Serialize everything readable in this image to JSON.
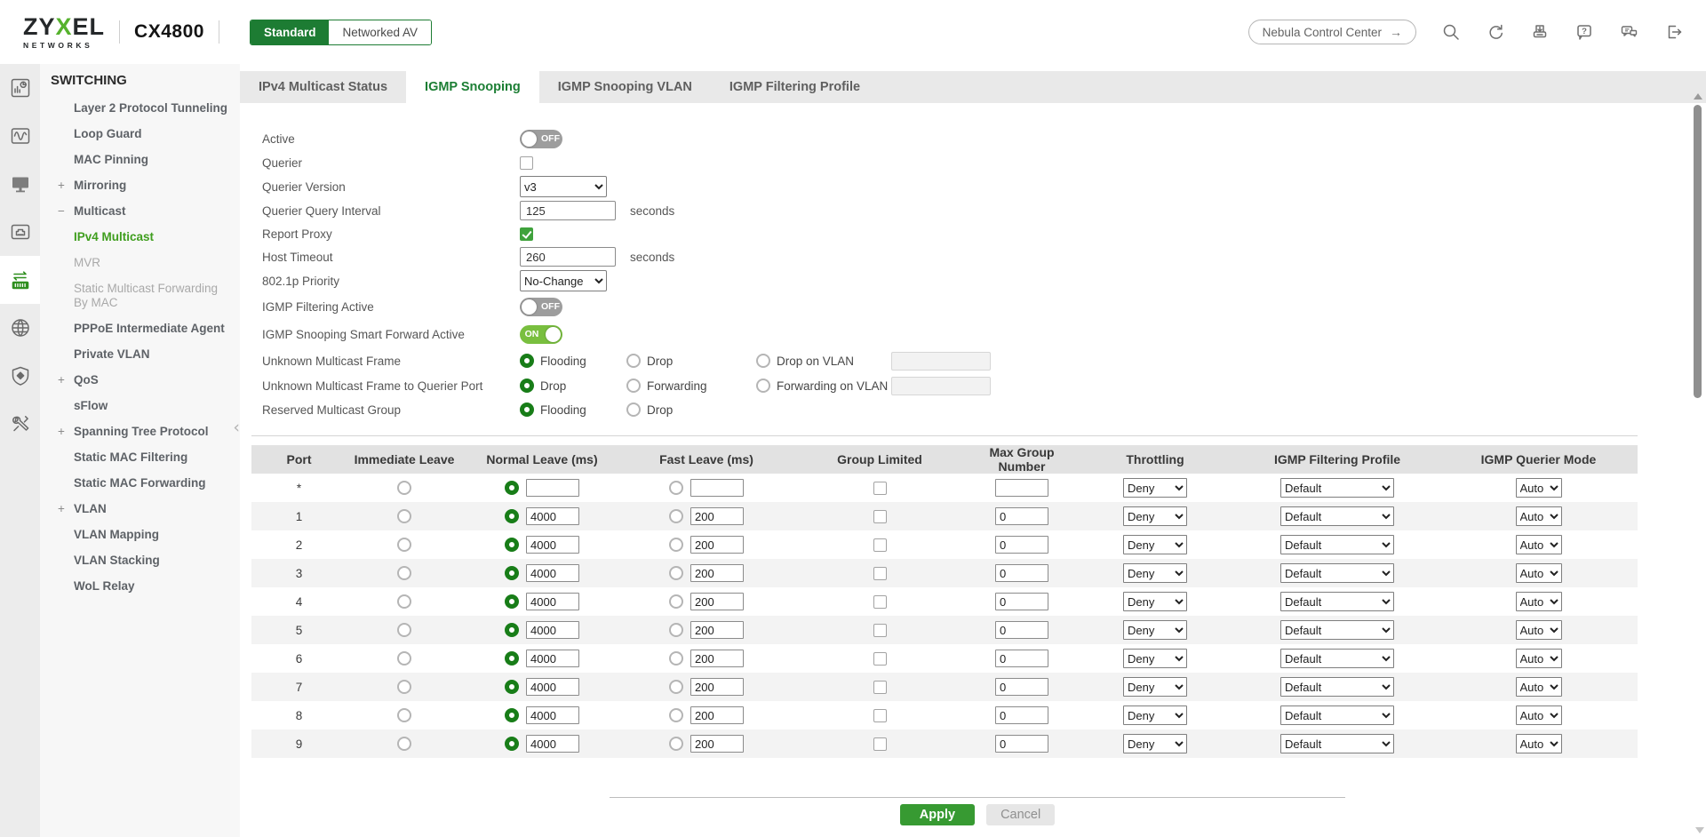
{
  "header": {
    "logo": {
      "part1": "ZY",
      "part2": "X",
      "part3": "EL",
      "subtitle": "NETWORKS"
    },
    "model": "CX4800",
    "mode_toggle": {
      "options": [
        {
          "label": "Standard",
          "active": true
        },
        {
          "label": "Networked AV",
          "active": false
        }
      ]
    },
    "nebula_button": {
      "label": "Nebula Control Center",
      "arrow": "→"
    },
    "icons": [
      "search",
      "refresh",
      "save",
      "help",
      "feedback",
      "logout"
    ]
  },
  "sidebar": {
    "rail_icons": [
      "dashboard",
      "monitoring-waves",
      "display",
      "port-status",
      "switching",
      "networking-globe",
      "security-shield",
      "maintenance-tools"
    ],
    "active_rail_icon": "switching",
    "section": "SWITCHING",
    "collapse_icon": "‹",
    "items": [
      {
        "label": "Layer 2 Protocol Tunneling",
        "state": "normal",
        "prefix": ""
      },
      {
        "label": "Loop Guard",
        "state": "normal",
        "prefix": ""
      },
      {
        "label": "MAC Pinning",
        "state": "normal",
        "prefix": ""
      },
      {
        "label": "Mirroring",
        "state": "normal",
        "prefix": "+"
      },
      {
        "label": "Multicast",
        "state": "normal",
        "prefix": "−"
      },
      {
        "label": "IPv4 Multicast",
        "state": "active",
        "prefix": ""
      },
      {
        "label": "MVR",
        "state": "dim",
        "prefix": ""
      },
      {
        "label": "Static Multicast Forwarding By MAC",
        "state": "dim",
        "prefix": ""
      },
      {
        "label": "PPPoE Intermediate Agent",
        "state": "normal",
        "prefix": ""
      },
      {
        "label": "Private VLAN",
        "state": "normal",
        "prefix": ""
      },
      {
        "label": "QoS",
        "state": "normal",
        "prefix": "+"
      },
      {
        "label": "sFlow",
        "state": "normal",
        "prefix": ""
      },
      {
        "label": "Spanning Tree Protocol",
        "state": "normal",
        "prefix": "+"
      },
      {
        "label": "Static MAC Filtering",
        "state": "normal",
        "prefix": ""
      },
      {
        "label": "Static MAC Forwarding",
        "state": "normal",
        "prefix": ""
      },
      {
        "label": "VLAN",
        "state": "normal",
        "prefix": "+"
      },
      {
        "label": "VLAN Mapping",
        "state": "normal",
        "prefix": ""
      },
      {
        "label": "VLAN Stacking",
        "state": "normal",
        "prefix": ""
      },
      {
        "label": "WoL Relay",
        "state": "normal",
        "prefix": ""
      }
    ]
  },
  "tabs": [
    {
      "label": "IPv4 Multicast Status",
      "active": false
    },
    {
      "label": "IGMP Snooping",
      "active": true
    },
    {
      "label": "IGMP Snooping VLAN",
      "active": false
    },
    {
      "label": "IGMP Filtering Profile",
      "active": false
    }
  ],
  "form": {
    "active": {
      "label": "Active",
      "value": "OFF"
    },
    "querier": {
      "label": "Querier",
      "checked": false
    },
    "querier_version": {
      "label": "Querier Version",
      "value": "v3"
    },
    "querier_query_interval": {
      "label": "Querier Query Interval",
      "value": "125",
      "unit": "seconds"
    },
    "report_proxy": {
      "label": "Report Proxy",
      "checked": true
    },
    "host_timeout": {
      "label": "Host Timeout",
      "value": "260",
      "unit": "seconds"
    },
    "priority_8021p": {
      "label": "802.1p Priority",
      "value": "No-Change"
    },
    "igmp_filtering_active": {
      "label": "IGMP Filtering Active",
      "value": "OFF"
    },
    "smart_forward_active": {
      "label": "IGMP Snooping Smart Forward Active",
      "value": "ON"
    },
    "unknown_multicast_frame": {
      "label": "Unknown Multicast Frame",
      "options": [
        "Flooding",
        "Drop",
        "Drop on VLAN"
      ],
      "selected": "Flooding",
      "vlan_value": ""
    },
    "unknown_multicast_frame_querier": {
      "label": "Unknown Multicast Frame to Querier Port",
      "options": [
        "Drop",
        "Forwarding",
        "Forwarding on VLAN"
      ],
      "selected": "Drop",
      "vlan_value": ""
    },
    "reserved_multicast_group": {
      "label": "Reserved Multicast Group",
      "options": [
        "Flooding",
        "Drop"
      ],
      "selected": "Flooding"
    }
  },
  "table": {
    "headers": [
      "Port",
      "Immediate Leave",
      "Normal Leave (ms)",
      "Fast Leave (ms)",
      "Group Limited",
      "Max Group Number",
      "Throttling",
      "IGMP Filtering Profile",
      "IGMP Querier Mode"
    ],
    "rows": [
      {
        "port": "*",
        "immediate_leave": false,
        "normal_leave_selected": true,
        "normal_leave": "",
        "fast_leave_selected": false,
        "fast_leave": "",
        "group_limited": false,
        "max_group_number": "",
        "throttling": "Deny",
        "igmp_filtering_profile": "Default",
        "igmp_querier_mode": "Auto"
      },
      {
        "port": "1",
        "immediate_leave": false,
        "normal_leave_selected": true,
        "normal_leave": "4000",
        "fast_leave_selected": false,
        "fast_leave": "200",
        "group_limited": false,
        "max_group_number": "0",
        "throttling": "Deny",
        "igmp_filtering_profile": "Default",
        "igmp_querier_mode": "Auto"
      },
      {
        "port": "2",
        "immediate_leave": false,
        "normal_leave_selected": true,
        "normal_leave": "4000",
        "fast_leave_selected": false,
        "fast_leave": "200",
        "group_limited": false,
        "max_group_number": "0",
        "throttling": "Deny",
        "igmp_filtering_profile": "Default",
        "igmp_querier_mode": "Auto"
      },
      {
        "port": "3",
        "immediate_leave": false,
        "normal_leave_selected": true,
        "normal_leave": "4000",
        "fast_leave_selected": false,
        "fast_leave": "200",
        "group_limited": false,
        "max_group_number": "0",
        "throttling": "Deny",
        "igmp_filtering_profile": "Default",
        "igmp_querier_mode": "Auto"
      },
      {
        "port": "4",
        "immediate_leave": false,
        "normal_leave_selected": true,
        "normal_leave": "4000",
        "fast_leave_selected": false,
        "fast_leave": "200",
        "group_limited": false,
        "max_group_number": "0",
        "throttling": "Deny",
        "igmp_filtering_profile": "Default",
        "igmp_querier_mode": "Auto"
      },
      {
        "port": "5",
        "immediate_leave": false,
        "normal_leave_selected": true,
        "normal_leave": "4000",
        "fast_leave_selected": false,
        "fast_leave": "200",
        "group_limited": false,
        "max_group_number": "0",
        "throttling": "Deny",
        "igmp_filtering_profile": "Default",
        "igmp_querier_mode": "Auto"
      },
      {
        "port": "6",
        "immediate_leave": false,
        "normal_leave_selected": true,
        "normal_leave": "4000",
        "fast_leave_selected": false,
        "fast_leave": "200",
        "group_limited": false,
        "max_group_number": "0",
        "throttling": "Deny",
        "igmp_filtering_profile": "Default",
        "igmp_querier_mode": "Auto"
      },
      {
        "port": "7",
        "immediate_leave": false,
        "normal_leave_selected": true,
        "normal_leave": "4000",
        "fast_leave_selected": false,
        "fast_leave": "200",
        "group_limited": false,
        "max_group_number": "0",
        "throttling": "Deny",
        "igmp_filtering_profile": "Default",
        "igmp_querier_mode": "Auto"
      },
      {
        "port": "8",
        "immediate_leave": false,
        "normal_leave_selected": true,
        "normal_leave": "4000",
        "fast_leave_selected": false,
        "fast_leave": "200",
        "group_limited": false,
        "max_group_number": "0",
        "throttling": "Deny",
        "igmp_filtering_profile": "Default",
        "igmp_querier_mode": "Auto"
      },
      {
        "port": "9",
        "immediate_leave": false,
        "normal_leave_selected": true,
        "normal_leave": "4000",
        "fast_leave_selected": false,
        "fast_leave": "200",
        "group_limited": false,
        "max_group_number": "0",
        "throttling": "Deny",
        "igmp_filtering_profile": "Default",
        "igmp_querier_mode": "Auto"
      }
    ]
  },
  "footer": {
    "apply": "Apply",
    "cancel": "Cancel"
  }
}
